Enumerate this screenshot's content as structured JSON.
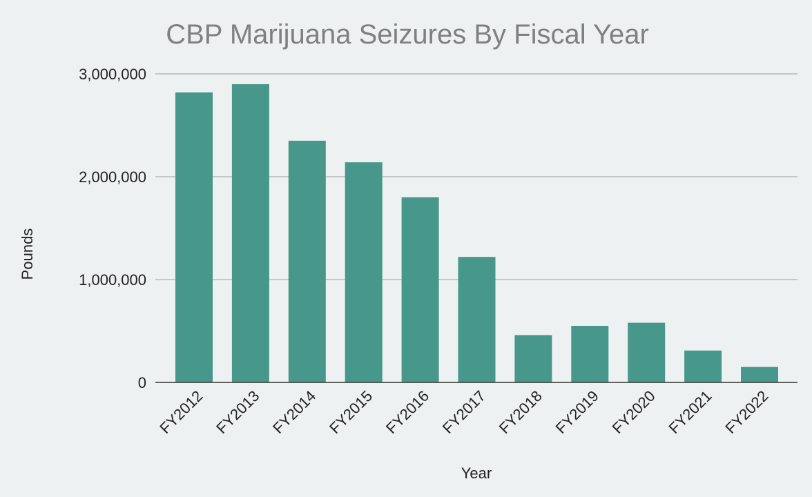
{
  "chart_data": {
    "type": "bar",
    "title": "CBP Marijuana Seizures By Fiscal Year",
    "xlabel": "Year",
    "ylabel": "Pounds",
    "categories": [
      "FY2012",
      "FY2013",
      "FY2014",
      "FY2015",
      "FY2016",
      "FY2017",
      "FY2018",
      "FY2019",
      "FY2020",
      "FY2021",
      "FY2022"
    ],
    "values": [
      2820000,
      2900000,
      2350000,
      2140000,
      1800000,
      1220000,
      460000,
      550000,
      580000,
      310000,
      150000
    ],
    "ylim": [
      0,
      3000000
    ],
    "yticks": [
      0,
      1000000,
      2000000,
      3000000
    ],
    "ytick_labels": [
      "0",
      "1,000,000",
      "2,000,000",
      "3,000,000"
    ],
    "grid": true,
    "legend": "none",
    "colors": {
      "bar": "#47978A",
      "background": "#EDF1F2"
    }
  }
}
